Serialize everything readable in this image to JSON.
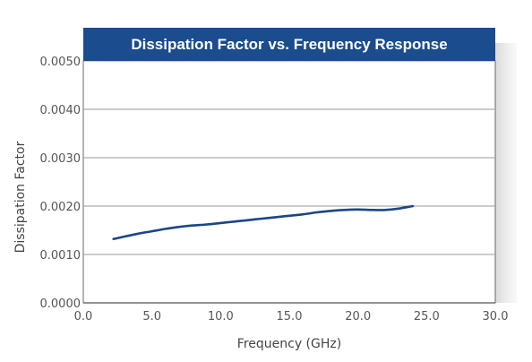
{
  "chart_data": {
    "type": "line",
    "title": "Dissipation Factor vs. Frequency Response",
    "xlabel": "Frequency (GHz)",
    "ylabel": "Dissipation Factor",
    "xlim": [
      0,
      30
    ],
    "ylim": [
      0,
      0.005
    ],
    "x_ticks": [
      "0.0",
      "5.0",
      "10.0",
      "15.0",
      "20.0",
      "25.0",
      "30.0"
    ],
    "y_ticks": [
      "0.0000",
      "0.0010",
      "0.0020",
      "0.0030",
      "0.0040",
      "0.0050"
    ],
    "grid": true,
    "legend": "none",
    "series": [
      {
        "x": [
          2.2,
          3.0,
          4.0,
          5.0,
          6.0,
          7.0,
          8.0,
          9.0,
          10.0,
          11.0,
          12.0,
          13.0,
          14.0,
          15.0,
          16.0,
          17.0,
          18.0,
          19.0,
          20.0,
          21.0,
          22.0,
          23.0,
          24.0
        ],
        "y": [
          0.00132,
          0.00137,
          0.00143,
          0.00148,
          0.00153,
          0.00157,
          0.0016,
          0.00162,
          0.00165,
          0.00168,
          0.00171,
          0.00174,
          0.00177,
          0.0018,
          0.00183,
          0.00187,
          0.0019,
          0.00192,
          0.00193,
          0.00192,
          0.00192,
          0.00195,
          0.002
        ]
      }
    ],
    "colors": {
      "line": "#1a4686",
      "title_band": "#1b4c8e",
      "grid": "#9a9a9a",
      "axis": "#555555"
    }
  }
}
